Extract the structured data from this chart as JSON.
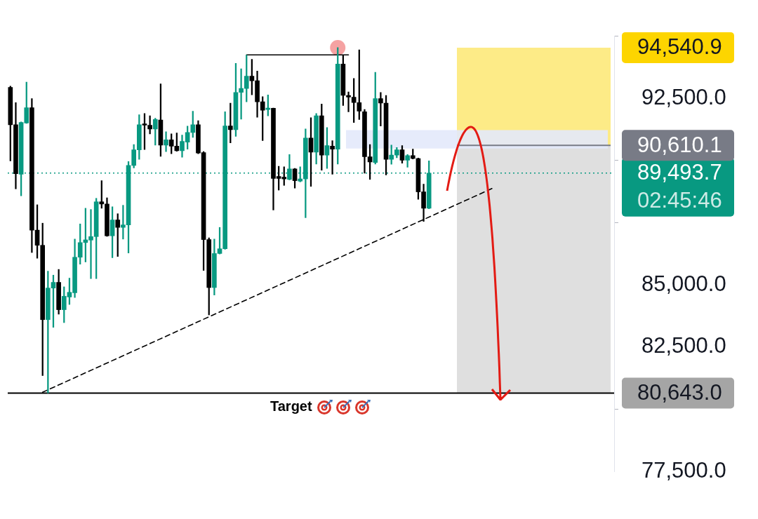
{
  "chart_data": {
    "type": "candlestick",
    "categories": [
      null,
      null,
      null,
      null,
      null,
      null,
      null,
      null,
      null,
      null,
      null,
      null,
      null,
      null,
      null,
      null,
      null,
      null,
      null,
      null,
      null,
      null,
      null,
      null,
      null,
      null,
      null,
      null,
      null,
      null,
      null,
      null,
      null,
      null,
      null,
      null,
      null,
      null,
      null,
      null,
      null,
      null,
      null,
      null,
      null,
      null,
      null,
      null,
      null,
      null,
      null,
      null,
      null,
      null,
      null,
      null,
      null,
      null,
      null,
      null,
      null,
      null,
      null,
      null,
      null,
      null,
      null,
      null,
      null,
      null,
      null,
      null,
      null,
      null,
      null,
      null,
      null,
      null,
      null,
      null,
      null,
      null,
      null,
      null,
      null,
      null,
      null,
      null,
      null,
      null,
      null,
      null,
      null,
      null,
      null,
      null,
      null,
      null,
      null,
      null,
      null,
      null,
      null,
      null,
      null,
      null,
      null,
      null,
      null,
      null,
      null,
      null,
      null
    ],
    "ohlc": [
      [
        92940,
        92990,
        89985,
        91440
      ],
      [
        91440,
        92330,
        88860,
        89470
      ],
      [
        89450,
        91550,
        88580,
        91530
      ],
      [
        91510,
        93150,
        91490,
        92120
      ],
      [
        92120,
        92490,
        86300,
        87200
      ],
      [
        87200,
        88220,
        86070,
        86590
      ],
      [
        86590,
        87480,
        81350,
        83600
      ],
      [
        83600,
        85550,
        80650,
        84870
      ],
      [
        84870,
        85390,
        83290,
        85100
      ],
      [
        85100,
        85620,
        83820,
        84000
      ],
      [
        84000,
        84920,
        83480,
        84540
      ],
      [
        84510,
        85270,
        84210,
        84700
      ],
      [
        84680,
        86840,
        84490,
        86110
      ],
      [
        86110,
        87450,
        85830,
        86700
      ],
      [
        86700,
        88080,
        85920,
        86810
      ],
      [
        86800,
        88030,
        85250,
        86940
      ],
      [
        86940,
        88480,
        85250,
        88340
      ],
      [
        88340,
        89190,
        88080,
        88250
      ],
      [
        88250,
        88500,
        86950,
        86970
      ],
      [
        86970,
        88140,
        86090,
        87610
      ],
      [
        87610,
        87860,
        86140,
        87310
      ],
      [
        87310,
        88200,
        86840,
        87410
      ],
      [
        87410,
        89960,
        86280,
        89800
      ],
      [
        89800,
        90640,
        89700,
        90430
      ],
      [
        90430,
        91840,
        90050,
        91440
      ],
      [
        91460,
        91890,
        90440,
        91420
      ],
      [
        91420,
        91800,
        91070,
        91270
      ],
      [
        91270,
        91700,
        90620,
        91650
      ],
      [
        91630,
        93080,
        90170,
        90620
      ],
      [
        90620,
        91160,
        90360,
        90830
      ],
      [
        90830,
        91070,
        90270,
        90580
      ],
      [
        90580,
        91110,
        90370,
        90390
      ],
      [
        90390,
        91020,
        90130,
        90770
      ],
      [
        90740,
        91380,
        90460,
        91130
      ],
      [
        91130,
        91980,
        90930,
        91440
      ],
      [
        91440,
        91600,
        90270,
        90300
      ],
      [
        90320,
        90360,
        85580,
        86820
      ],
      [
        86820,
        86890,
        83790,
        84890
      ],
      [
        84890,
        86840,
        84590,
        86260
      ],
      [
        86260,
        87310,
        86240,
        86450
      ],
      [
        86450,
        91960,
        86430,
        91390
      ],
      [
        91390,
        92310,
        90710,
        91240
      ],
      [
        91240,
        93910,
        90970,
        92740
      ],
      [
        92740,
        93690,
        91660,
        92900
      ],
      [
        92900,
        94240,
        92360,
        93390
      ],
      [
        93390,
        94070,
        92640,
        93210
      ],
      [
        93210,
        93600,
        91740,
        92360
      ],
      [
        92360,
        92570,
        90800,
        92020
      ],
      [
        92050,
        92640,
        91800,
        92100
      ],
      [
        92100,
        92110,
        88010,
        89280
      ],
      [
        89360,
        89770,
        88810,
        89280
      ],
      [
        89330,
        89750,
        89000,
        89260
      ],
      [
        89240,
        90240,
        89220,
        89660
      ],
      [
        89660,
        89680,
        88890,
        89190
      ],
      [
        89170,
        89750,
        89140,
        89260
      ],
      [
        89260,
        91270,
        87700,
        90900
      ],
      [
        90900,
        91720,
        88960,
        90340
      ],
      [
        90340,
        91890,
        89860,
        91800
      ],
      [
        91800,
        92270,
        89610,
        90220
      ],
      [
        90220,
        91330,
        89680,
        90600
      ],
      [
        90580,
        90800,
        89450,
        90460
      ],
      [
        90460,
        94540,
        89860,
        93880
      ],
      [
        93880,
        94240,
        92210,
        92620
      ],
      [
        92620,
        92760,
        91960,
        92550
      ],
      [
        92550,
        93300,
        91530,
        92330
      ],
      [
        92330,
        94450,
        91650,
        91990
      ],
      [
        91960,
        92050,
        89490,
        90150
      ],
      [
        90150,
        90640,
        89240,
        89940
      ],
      [
        89920,
        93550,
        89860,
        92490
      ],
      [
        92490,
        92740,
        91390,
        92310
      ],
      [
        92310,
        92620,
        89420,
        90050
      ],
      [
        90050,
        90620,
        89850,
        90220
      ],
      [
        90220,
        90520,
        90110,
        90430
      ],
      [
        90430,
        90600,
        89890,
        90010
      ],
      [
        90010,
        90240,
        89730,
        90200
      ],
      [
        90200,
        90460,
        90060,
        90080
      ],
      [
        90080,
        90100,
        88440,
        88740
      ],
      [
        88740,
        89050,
        87550,
        88080
      ],
      [
        88080,
        89990,
        88060,
        89493.7
      ],
      null,
      null,
      null,
      null,
      null,
      null,
      null,
      null,
      null,
      null,
      null,
      null,
      null,
      null,
      null,
      null,
      null,
      null,
      null,
      null,
      null,
      null,
      null,
      null,
      null,
      null,
      null,
      null,
      null,
      null,
      null,
      null,
      null,
      null
    ],
    "colors": [
      "#000000",
      "#000000",
      "#089981",
      "#089981",
      "#000000",
      "#000000",
      "#000000",
      "#089981",
      "#089981",
      "#000000",
      "#089981",
      "#089981",
      "#089981",
      "#089981",
      "#089981",
      "#089981",
      "#089981",
      "#000000",
      "#000000",
      "#089981",
      "#000000",
      "#089981",
      "#089981",
      "#089981",
      "#089981",
      "#000000",
      "#000000",
      "#089981",
      "#000000",
      "#089981",
      "#000000",
      "#000000",
      "#089981",
      "#089981",
      "#089981",
      "#000000",
      "#000000",
      "#000000",
      "#089981",
      "#089981",
      "#089981",
      "#000000",
      "#089981",
      "#089981",
      "#089981",
      "#000000",
      "#000000",
      "#000000",
      "#089981",
      "#000000",
      "#000000",
      "#000000",
      "#089981",
      "#000000",
      "#089981",
      "#089981",
      "#000000",
      "#089981",
      "#000000",
      "#089981",
      "#000000",
      "#089981",
      "#000000",
      "#000000",
      "#000000",
      "#000000",
      "#000000",
      "#000000",
      "#089981",
      "#000000",
      "#000000",
      "#089981",
      "#089981",
      "#000000",
      "#089981",
      "#000000",
      "#000000",
      "#000000",
      "#089981",
      null,
      null,
      null,
      null,
      null,
      null,
      null,
      null,
      null,
      null,
      null,
      null,
      null,
      null,
      null,
      null,
      null,
      null,
      null,
      null,
      null,
      null,
      null,
      null,
      null,
      null,
      null,
      null,
      null,
      null,
      null,
      null,
      null,
      null
    ],
    "series": [
      {
        "type": "line",
        "color": "#000000",
        "line_style": "solid",
        "values": [
          null,
          null,
          null,
          null,
          null,
          null,
          null,
          null,
          null,
          null,
          null,
          null,
          null,
          null,
          null,
          null,
          null,
          null,
          null,
          null,
          null,
          null,
          null,
          null,
          null,
          null,
          null,
          null,
          null,
          null,
          null,
          null,
          null,
          null,
          null,
          null,
          null,
          null,
          null,
          null,
          null,
          null,
          null,
          null,
          94250,
          null,
          null,
          null,
          null,
          null,
          null,
          null,
          null,
          null,
          null,
          null,
          null,
          null,
          null,
          null,
          null,
          null,
          null,
          94250,
          null,
          null,
          null,
          null,
          null,
          null,
          null,
          null,
          null,
          null,
          null,
          null,
          null,
          null,
          null,
          null,
          null,
          null,
          null,
          null,
          null,
          null,
          null,
          null,
          null,
          null,
          null,
          null,
          null,
          null,
          null,
          null,
          null,
          null,
          null,
          null,
          null,
          null,
          null,
          null,
          null,
          null,
          null,
          null,
          null,
          null,
          null,
          null,
          null
        ]
      },
      {
        "type": "line",
        "color": "#000000",
        "line_style": "dashed",
        "values": [
          null,
          null,
          null,
          null,
          null,
          null,
          80680,
          null,
          null,
          null,
          null,
          null,
          null,
          null,
          null,
          null,
          null,
          null,
          null,
          null,
          null,
          null,
          null,
          null,
          null,
          null,
          null,
          null,
          null,
          null,
          null,
          null,
          null,
          null,
          null,
          null,
          null,
          null,
          null,
          null,
          null,
          null,
          null,
          null,
          null,
          null,
          null,
          null,
          null,
          null,
          null,
          null,
          null,
          null,
          null,
          null,
          null,
          null,
          null,
          null,
          null,
          null,
          null,
          null,
          null,
          null,
          null,
          null,
          null,
          null,
          null,
          null,
          null,
          null,
          null,
          null,
          null,
          null,
          null,
          null,
          null,
          null,
          null,
          null,
          null,
          null,
          null,
          null,
          null,
          null,
          88900,
          null,
          null,
          null,
          null,
          null,
          null,
          null,
          null,
          null,
          null,
          null,
          null,
          null,
          null,
          null,
          null,
          null,
          null,
          null,
          null,
          null,
          null
        ]
      },
      {
        "type": "scatter",
        "color": "#f28b8b",
        "marker": "circle",
        "values": [
          null,
          null,
          null,
          null,
          null,
          null,
          null,
          null,
          null,
          null,
          null,
          null,
          null,
          null,
          null,
          null,
          null,
          null,
          null,
          null,
          null,
          null,
          null,
          null,
          null,
          null,
          null,
          null,
          null,
          null,
          null,
          null,
          null,
          null,
          null,
          null,
          null,
          null,
          null,
          null,
          null,
          null,
          null,
          null,
          null,
          null,
          null,
          null,
          null,
          null,
          null,
          null,
          null,
          null,
          null,
          null,
          null,
          null,
          null,
          null,
          null,
          94540,
          null,
          null,
          null,
          null,
          null,
          null,
          null,
          null,
          null,
          null,
          null,
          null,
          null,
          null,
          null,
          null,
          null,
          null,
          null,
          null,
          null,
          null,
          null,
          null,
          null,
          null,
          null,
          null,
          null,
          null,
          null,
          null,
          null,
          null,
          null,
          null,
          null,
          null,
          null,
          null,
          null,
          null,
          null,
          null,
          null,
          null,
          null,
          null,
          null,
          null,
          null
        ]
      }
    ],
    "ylim": [
      77500,
      95000
    ],
    "yticks": [
      {
        "value": 77500,
        "label": "77,500.0"
      },
      {
        "value": 80000,
        "label": null
      },
      {
        "value": 82500,
        "label": "82,500.0"
      },
      {
        "value": 85000,
        "label": "85,000.0"
      },
      {
        "value": 87500,
        "label": null
      },
      {
        "value": 90000,
        "label": null
      },
      {
        "value": 92500,
        "label": "92,500.0"
      },
      {
        "value": 95000,
        "label": null
      }
    ],
    "tick_labels": "y",
    "bands": [
      {
        "axis": "y",
        "from": 90610.1,
        "to": 94540.9,
        "color": "#fde97a",
        "label": "94,540.9"
      },
      {
        "axis": "y",
        "from": 80643.0,
        "to": 90610.1,
        "color": "#dcdcdc",
        "label": "80,643.0"
      },
      {
        "axis": "y",
        "from": 90480,
        "to": 91220,
        "color": "#e3e9fb"
      }
    ],
    "ref_lines": [
      {
        "axis": "y",
        "value": 89493.7,
        "label": "89,493.7\n02:45:46",
        "color": "#089981",
        "line_style": "dotted"
      },
      {
        "axis": "y",
        "value": 90610.1,
        "label": "90,610.1",
        "color": "#787b86",
        "line_style": "solid"
      },
      {
        "axis": "y",
        "value": 80643.0,
        "color": "#000000",
        "line_style": "solid"
      }
    ],
    "annotations": [
      "Target"
    ]
  }
}
